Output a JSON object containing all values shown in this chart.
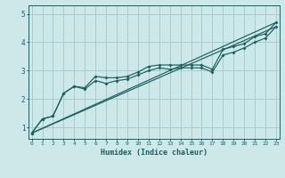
{
  "title": "",
  "xlabel": "Humidex (Indice chaleur)",
  "ylabel": "",
  "background_color": "#cce8e8",
  "grid_color": "#aacccc",
  "line_color": "#1a6060",
  "x_ticks": [
    0,
    1,
    2,
    3,
    4,
    5,
    6,
    7,
    8,
    9,
    10,
    11,
    12,
    13,
    14,
    15,
    16,
    17,
    18,
    19,
    20,
    21,
    22,
    23
  ],
  "y_ticks": [
    1,
    2,
    3,
    4,
    5
  ],
  "ylim": [
    0.6,
    5.3
  ],
  "xlim": [
    -0.3,
    23.3
  ],
  "line1_x": [
    0,
    1,
    2,
    3,
    4,
    5,
    6,
    7,
    8,
    9,
    10,
    11,
    12,
    13,
    14,
    15,
    16,
    17,
    18,
    19,
    20,
    21,
    22,
    23
  ],
  "line1_y": [
    0.8,
    1.3,
    1.4,
    2.2,
    2.45,
    2.4,
    2.8,
    2.75,
    2.75,
    2.8,
    2.95,
    3.15,
    3.2,
    3.2,
    3.2,
    3.2,
    3.2,
    3.05,
    3.75,
    3.85,
    3.95,
    4.2,
    4.3,
    4.7
  ],
  "line2_x": [
    0,
    1,
    2,
    3,
    4,
    5,
    6,
    7,
    8,
    9,
    10,
    11,
    12,
    13,
    14,
    15,
    16,
    17,
    18,
    19,
    20,
    21,
    22,
    23
  ],
  "line2_y": [
    0.8,
    1.3,
    1.4,
    2.2,
    2.45,
    2.35,
    2.65,
    2.55,
    2.65,
    2.7,
    2.85,
    3.0,
    3.1,
    3.05,
    3.1,
    3.1,
    3.1,
    2.95,
    3.55,
    3.65,
    3.8,
    4.0,
    4.15,
    4.55
  ],
  "line3_x": [
    0,
    23
  ],
  "line3_y": [
    0.8,
    4.7
  ],
  "line4_x": [
    0,
    23
  ],
  "line4_y": [
    0.8,
    4.55
  ]
}
